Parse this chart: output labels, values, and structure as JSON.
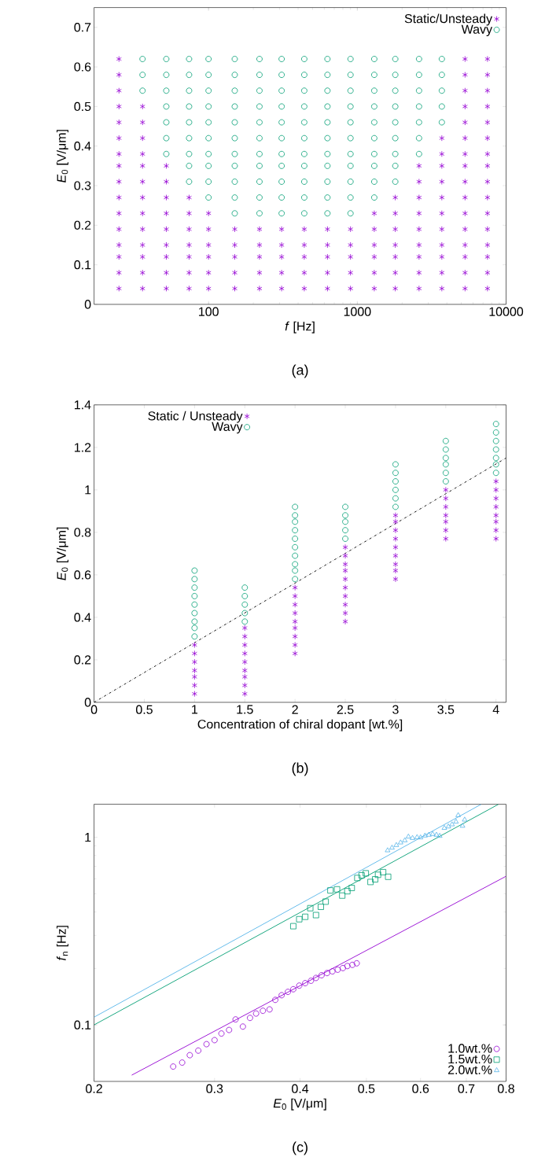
{
  "chart_data": [
    {
      "type": "scatter",
      "xlabel": "*f* [Hz]",
      "ylabel": "*E*$_{0}$ [V/μm]",
      "annotations": [
        "(a)"
      ],
      "log": "x",
      "legend": "top right",
      "xlim": [
        17,
        10000
      ],
      "ylim": [
        0,
        0.75
      ],
      "xticks": [
        100,
        1000,
        10000
      ],
      "yticks": [
        0,
        0.1,
        0.2,
        0.3,
        0.4,
        0.5,
        0.6,
        0.7
      ],
      "series": [
        {
          "name": "Static/Unsteady",
          "color": "#9400d3",
          "marker": "cross",
          "x": [
            25,
            25,
            25,
            25,
            25,
            25,
            25,
            25,
            25,
            25,
            25,
            25,
            25,
            25,
            25,
            25,
            36,
            36,
            36,
            36,
            36,
            36,
            36,
            36,
            36,
            36,
            36,
            36,
            36,
            52,
            52,
            52,
            52,
            52,
            52,
            52,
            52,
            52,
            74,
            74,
            74,
            74,
            74,
            74,
            74,
            100,
            100,
            100,
            100,
            100,
            100,
            150,
            150,
            150,
            150,
            150,
            220,
            220,
            220,
            220,
            220,
            310,
            310,
            310,
            310,
            310,
            440,
            440,
            440,
            440,
            440,
            630,
            630,
            630,
            630,
            630,
            900,
            900,
            900,
            900,
            900,
            1300,
            1300,
            1300,
            1300,
            1300,
            1300,
            1800,
            1800,
            1800,
            1800,
            1800,
            1800,
            1800,
            2600,
            2600,
            2600,
            2600,
            2600,
            2600,
            2600,
            2600,
            2600,
            3700,
            3700,
            3700,
            3700,
            3700,
            3700,
            3700,
            3700,
            3700,
            3700,
            3700,
            5300,
            5300,
            5300,
            5300,
            5300,
            5300,
            5300,
            5300,
            5300,
            5300,
            5300,
            5300,
            5300,
            5300,
            5300,
            5300,
            7500,
            7500,
            7500,
            7500,
            7500,
            7500,
            7500,
            7500,
            7500,
            7500,
            7500,
            7500,
            7500,
            7500,
            7500,
            7500
          ],
          "values": [
            0.04,
            0.08,
            0.12,
            0.15,
            0.19,
            0.23,
            0.27,
            0.31,
            0.35,
            0.38,
            0.42,
            0.46,
            0.5,
            0.54,
            0.58,
            0.62,
            0.04,
            0.08,
            0.12,
            0.15,
            0.19,
            0.23,
            0.27,
            0.31,
            0.35,
            0.38,
            0.42,
            0.46,
            0.5,
            0.04,
            0.08,
            0.12,
            0.15,
            0.19,
            0.23,
            0.27,
            0.31,
            0.35,
            0.04,
            0.08,
            0.12,
            0.15,
            0.19,
            0.23,
            0.27,
            0.04,
            0.08,
            0.12,
            0.15,
            0.19,
            0.23,
            0.04,
            0.08,
            0.12,
            0.15,
            0.19,
            0.04,
            0.08,
            0.12,
            0.15,
            0.19,
            0.04,
            0.08,
            0.12,
            0.15,
            0.19,
            0.04,
            0.08,
            0.12,
            0.15,
            0.19,
            0.04,
            0.08,
            0.12,
            0.15,
            0.19,
            0.04,
            0.08,
            0.12,
            0.15,
            0.19,
            0.04,
            0.08,
            0.12,
            0.15,
            0.19,
            0.23,
            0.04,
            0.08,
            0.12,
            0.15,
            0.19,
            0.23,
            0.27,
            0.04,
            0.08,
            0.12,
            0.15,
            0.19,
            0.23,
            0.27,
            0.31,
            0.35,
            0.04,
            0.08,
            0.12,
            0.15,
            0.19,
            0.23,
            0.27,
            0.31,
            0.35,
            0.38,
            0.42,
            0.04,
            0.08,
            0.12,
            0.15,
            0.19,
            0.23,
            0.27,
            0.31,
            0.35,
            0.38,
            0.42,
            0.46,
            0.5,
            0.54,
            0.58,
            0.62,
            0.04,
            0.08,
            0.12,
            0.15,
            0.19,
            0.23,
            0.27,
            0.31,
            0.35,
            0.38,
            0.42,
            0.46,
            0.5,
            0.54,
            0.58,
            0.62
          ]
        },
        {
          "name": "Wavy",
          "color": "#009e73",
          "marker": "circle",
          "x": [
            36,
            36,
            36,
            52,
            52,
            52,
            52,
            52,
            52,
            52,
            74,
            74,
            74,
            74,
            74,
            74,
            74,
            74,
            74,
            100,
            100,
            100,
            100,
            100,
            100,
            100,
            100,
            100,
            100,
            150,
            150,
            150,
            150,
            150,
            150,
            150,
            150,
            150,
            150,
            150,
            220,
            220,
            220,
            220,
            220,
            220,
            220,
            220,
            220,
            220,
            220,
            310,
            310,
            310,
            310,
            310,
            310,
            310,
            310,
            310,
            310,
            310,
            440,
            440,
            440,
            440,
            440,
            440,
            440,
            440,
            440,
            440,
            440,
            630,
            630,
            630,
            630,
            630,
            630,
            630,
            630,
            630,
            630,
            630,
            900,
            900,
            900,
            900,
            900,
            900,
            900,
            900,
            900,
            900,
            900,
            1300,
            1300,
            1300,
            1300,
            1300,
            1300,
            1300,
            1300,
            1300,
            1300,
            1800,
            1800,
            1800,
            1800,
            1800,
            1800,
            1800,
            1800,
            1800,
            2600,
            2600,
            2600,
            2600,
            2600,
            2600,
            2600,
            3700,
            3700,
            3700,
            3700,
            3700
          ],
          "values": [
            0.54,
            0.58,
            0.62,
            0.38,
            0.42,
            0.46,
            0.5,
            0.54,
            0.58,
            0.62,
            0.31,
            0.35,
            0.38,
            0.42,
            0.46,
            0.5,
            0.54,
            0.58,
            0.62,
            0.27,
            0.31,
            0.35,
            0.38,
            0.42,
            0.46,
            0.5,
            0.54,
            0.58,
            0.62,
            0.23,
            0.27,
            0.31,
            0.35,
            0.38,
            0.42,
            0.46,
            0.5,
            0.54,
            0.58,
            0.62,
            0.23,
            0.27,
            0.31,
            0.35,
            0.38,
            0.42,
            0.46,
            0.5,
            0.54,
            0.58,
            0.62,
            0.23,
            0.27,
            0.31,
            0.35,
            0.38,
            0.42,
            0.46,
            0.5,
            0.54,
            0.58,
            0.62,
            0.23,
            0.27,
            0.31,
            0.35,
            0.38,
            0.42,
            0.46,
            0.5,
            0.54,
            0.58,
            0.62,
            0.23,
            0.27,
            0.31,
            0.35,
            0.38,
            0.42,
            0.46,
            0.5,
            0.54,
            0.58,
            0.62,
            0.23,
            0.27,
            0.31,
            0.35,
            0.38,
            0.42,
            0.46,
            0.5,
            0.54,
            0.58,
            0.62,
            0.27,
            0.31,
            0.35,
            0.38,
            0.42,
            0.46,
            0.5,
            0.54,
            0.58,
            0.62,
            0.31,
            0.35,
            0.38,
            0.42,
            0.46,
            0.5,
            0.54,
            0.58,
            0.62,
            0.38,
            0.42,
            0.46,
            0.5,
            0.54,
            0.58,
            0.62,
            0.46,
            0.5,
            0.54,
            0.58,
            0.62
          ]
        }
      ]
    },
    {
      "type": "scatter",
      "xlabel": "Concentration of chiral dopant [wt.%]",
      "ylabel": "*E*$_{0}$ [V/μm]",
      "annotations": [
        "(b)"
      ],
      "legend": "top left",
      "xlim": [
        0,
        4.1
      ],
      "ylim": [
        0,
        1.4
      ],
      "xticks": [
        0,
        0.5,
        1,
        1.5,
        2,
        2.5,
        3,
        3.5,
        4
      ],
      "yticks": [
        0,
        0.2,
        0.4,
        0.6,
        0.8,
        1,
        1.2,
        1.4
      ],
      "series": [
        {
          "name": "Static / Unsteady",
          "color": "#9400d3",
          "marker": "cross",
          "x": [
            1,
            1,
            1,
            1,
            1,
            1,
            1,
            1.5,
            1.5,
            1.5,
            1.5,
            1.5,
            1.5,
            1.5,
            1.5,
            1.5,
            2,
            2,
            2,
            2,
            2,
            2,
            2,
            2,
            2,
            2.5,
            2.5,
            2.5,
            2.5,
            2.5,
            2.5,
            2.5,
            2.5,
            2.5,
            2.5,
            3,
            3,
            3,
            3,
            3,
            3,
            3,
            3,
            3,
            3.5,
            3.5,
            3.5,
            3.5,
            3.5,
            3.5,
            3.5,
            4,
            4,
            4,
            4,
            4,
            4,
            4,
            4
          ],
          "values": [
            0.04,
            0.08,
            0.12,
            0.15,
            0.19,
            0.23,
            0.27,
            0.04,
            0.08,
            0.12,
            0.15,
            0.19,
            0.23,
            0.27,
            0.31,
            0.35,
            0.23,
            0.27,
            0.31,
            0.35,
            0.38,
            0.42,
            0.46,
            0.5,
            0.54,
            0.38,
            0.42,
            0.46,
            0.5,
            0.54,
            0.58,
            0.62,
            0.65,
            0.69,
            0.73,
            0.58,
            0.62,
            0.65,
            0.69,
            0.73,
            0.77,
            0.81,
            0.85,
            0.88,
            0.77,
            0.81,
            0.85,
            0.88,
            0.92,
            0.96,
            1.0,
            0.77,
            0.81,
            0.85,
            0.88,
            0.92,
            0.96,
            1.0,
            1.04
          ]
        },
        {
          "name": "Wavy",
          "color": "#009e73",
          "marker": "circle",
          "x": [
            1,
            1,
            1,
            1,
            1,
            1,
            1,
            1,
            1,
            1.5,
            1.5,
            1.5,
            1.5,
            1.5,
            2,
            2,
            2,
            2,
            2,
            2,
            2,
            2,
            2,
            2,
            2.5,
            2.5,
            2.5,
            2.5,
            2.5,
            3,
            3,
            3,
            3,
            3,
            3,
            3.5,
            3.5,
            3.5,
            3.5,
            3.5,
            3.5,
            4,
            4,
            4,
            4,
            4,
            4,
            4
          ],
          "values": [
            0.31,
            0.35,
            0.38,
            0.42,
            0.46,
            0.5,
            0.54,
            0.58,
            0.62,
            0.38,
            0.42,
            0.46,
            0.5,
            0.54,
            0.58,
            0.62,
            0.65,
            0.69,
            0.73,
            0.77,
            0.81,
            0.85,
            0.88,
            0.92,
            0.77,
            0.81,
            0.85,
            0.88,
            0.92,
            0.92,
            0.96,
            1.0,
            1.04,
            1.08,
            1.12,
            1.04,
            1.08,
            1.12,
            1.15,
            1.19,
            1.23,
            1.08,
            1.12,
            1.15,
            1.19,
            1.23,
            1.27,
            1.31
          ]
        },
        {
          "type": "line",
          "color": "#000000",
          "marker": "none",
          "line_style": "dashed",
          "x": [
            0,
            4.1
          ],
          "values": [
            0,
            1.15
          ]
        }
      ]
    },
    {
      "type": "scatter",
      "xlabel": "*E*$_{0}$ [V/μm]",
      "ylabel": "*f*$_{n}$ [Hz]",
      "annotations": [
        "(c)"
      ],
      "log": "xy",
      "legend": "bottom right",
      "xlim": [
        0.2,
        0.8
      ],
      "ylim": [
        0.05,
        1.5
      ],
      "xticks": [
        0.2,
        0.3,
        0.4,
        0.5,
        0.6,
        0.7,
        0.8
      ],
      "yticks": [
        0.1,
        1
      ],
      "series": [
        {
          "name": "1.0wt.%",
          "color": "#9400d3",
          "marker": "circle",
          "x": [
            0.261,
            0.269,
            0.276,
            0.284,
            0.292,
            0.3,
            0.307,
            0.315,
            0.322,
            0.33,
            0.338,
            0.345,
            0.353,
            0.361,
            0.368,
            0.376,
            0.384,
            0.391,
            0.399,
            0.407,
            0.415,
            0.422,
            0.43,
            0.438,
            0.446,
            0.454,
            0.462,
            0.469,
            0.477,
            0.484
          ],
          "values": [
            0.06,
            0.063,
            0.069,
            0.073,
            0.079,
            0.083,
            0.09,
            0.094,
            0.107,
            0.098,
            0.109,
            0.115,
            0.119,
            0.121,
            0.136,
            0.144,
            0.15,
            0.155,
            0.162,
            0.167,
            0.172,
            0.178,
            0.184,
            0.189,
            0.193,
            0.197,
            0.201,
            0.206,
            0.209,
            0.213
          ]
        },
        {
          "name": "1.5wt.%",
          "color": "#009e73",
          "marker": "square",
          "x": [
            0.391,
            0.399,
            0.407,
            0.414,
            0.422,
            0.429,
            0.436,
            0.443,
            0.453,
            0.461,
            0.469,
            0.476,
            0.485,
            0.492,
            0.499,
            0.507,
            0.515,
            0.52,
            0.529,
            0.538
          ],
          "values": [
            0.336,
            0.366,
            0.377,
            0.419,
            0.385,
            0.426,
            0.454,
            0.521,
            0.528,
            0.489,
            0.516,
            0.537,
            0.607,
            0.627,
            0.643,
            0.578,
            0.597,
            0.631,
            0.652,
            0.616
          ]
        },
        {
          "name": "2.0wt.%",
          "color": "#56b4e9",
          "marker": "triangle",
          "x": [
            0.537,
            0.545,
            0.553,
            0.561,
            0.569,
            0.576,
            0.584,
            0.593,
            0.6,
            0.609,
            0.617,
            0.625,
            0.633,
            0.64,
            0.65,
            0.659,
            0.667,
            0.676,
            0.681,
            0.691,
            0.696
          ],
          "values": [
            0.851,
            0.879,
            0.908,
            0.937,
            0.962,
            1.007,
            0.99,
            1.0,
            0.997,
            1.02,
            1.03,
            1.04,
            1.03,
            1.016,
            1.12,
            1.14,
            1.17,
            1.21,
            1.31,
            1.15,
            1.24
          ]
        },
        {
          "type": "line",
          "color": "#9400d3",
          "marker": "none",
          "x": [
            0.227,
            0.8
          ],
          "values": [
            0.054,
            0.62
          ]
        },
        {
          "type": "line",
          "color": "#009e73",
          "marker": "none",
          "x": [
            0.2,
            0.78
          ],
          "values": [
            0.1,
            1.5
          ]
        },
        {
          "type": "line",
          "color": "#56b4e9",
          "marker": "none",
          "x": [
            0.2,
            0.736
          ],
          "values": [
            0.11,
            1.5
          ]
        }
      ]
    }
  ]
}
